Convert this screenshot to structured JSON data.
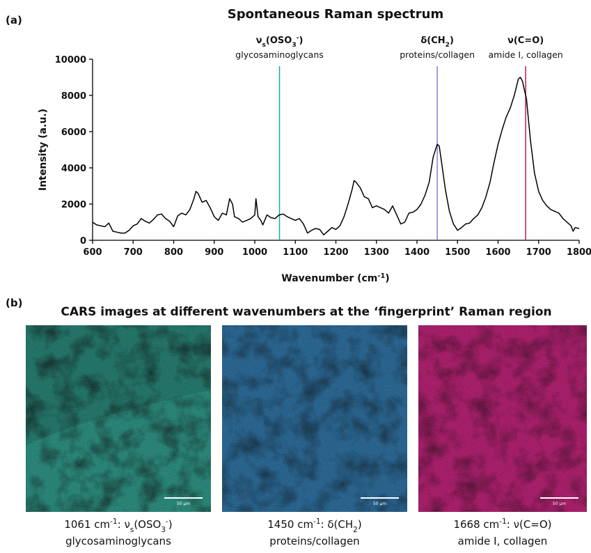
{
  "panel_a_label": "(a)",
  "panel_b_label": "(b)",
  "chart_data": {
    "type": "line",
    "title": "Spontaneous Raman spectrum",
    "x_label": [
      "Wavenumber (cm",
      {
        "sup": "-1"
      },
      ")"
    ],
    "y_label": "Intensity (a.u.)",
    "color": "#000000",
    "x": [
      600,
      610,
      620,
      630,
      640,
      650,
      660,
      670,
      680,
      690,
      700,
      710,
      720,
      730,
      740,
      750,
      760,
      770,
      780,
      790,
      800,
      810,
      820,
      830,
      840,
      850,
      855,
      860,
      870,
      880,
      890,
      900,
      910,
      920,
      930,
      938,
      945,
      950,
      960,
      970,
      980,
      990,
      1000,
      1003,
      1008,
      1015,
      1020,
      1030,
      1040,
      1050,
      1060,
      1070,
      1080,
      1090,
      1100,
      1110,
      1120,
      1130,
      1140,
      1150,
      1160,
      1170,
      1180,
      1190,
      1200,
      1210,
      1220,
      1230,
      1240,
      1245,
      1250,
      1260,
      1270,
      1280,
      1290,
      1300,
      1310,
      1320,
      1330,
      1340,
      1350,
      1360,
      1370,
      1380,
      1390,
      1400,
      1410,
      1420,
      1430,
      1440,
      1450,
      1455,
      1460,
      1470,
      1480,
      1490,
      1500,
      1510,
      1520,
      1530,
      1540,
      1550,
      1560,
      1570,
      1580,
      1590,
      1600,
      1610,
      1620,
      1630,
      1640,
      1650,
      1655,
      1660,
      1670,
      1680,
      1690,
      1700,
      1710,
      1720,
      1730,
      1740,
      1750,
      1760,
      1770,
      1780,
      1785,
      1790,
      1800
    ],
    "values": [
      1000,
      850,
      800,
      750,
      950,
      500,
      450,
      400,
      400,
      550,
      800,
      900,
      1200,
      1050,
      950,
      1150,
      1400,
      1450,
      1200,
      1050,
      750,
      1350,
      1500,
      1400,
      1700,
      2300,
      2700,
      2600,
      2100,
      2200,
      1800,
      1300,
      1100,
      1500,
      1400,
      2300,
      2000,
      1300,
      1200,
      1000,
      1100,
      1200,
      1400,
      2300,
      1300,
      1100,
      850,
      1400,
      1250,
      1200,
      1400,
      1450,
      1300,
      1200,
      1100,
      1200,
      900,
      400,
      550,
      650,
      600,
      300,
      500,
      700,
      600,
      800,
      1300,
      2000,
      2800,
      3300,
      3200,
      2900,
      2400,
      2300,
      1800,
      1900,
      1800,
      1700,
      1500,
      1900,
      1400,
      900,
      1000,
      1500,
      1550,
      1700,
      2000,
      2500,
      3200,
      4600,
      5300,
      5200,
      4400,
      2800,
      1600,
      900,
      550,
      700,
      900,
      950,
      1200,
      1400,
      1800,
      2400,
      3200,
      4300,
      5300,
      6100,
      6800,
      7300,
      8000,
      8900,
      9000,
      8800,
      7800,
      5500,
      3700,
      2700,
      2200,
      1900,
      1700,
      1600,
      1500,
      1200,
      1000,
      800,
      500,
      700,
      650
    ],
    "xlim": [
      600,
      1800
    ],
    "xticks": [
      600,
      700,
      800,
      900,
      1000,
      1100,
      1200,
      1300,
      1400,
      1500,
      1600,
      1700,
      1800
    ],
    "ylim": [
      0,
      10000
    ],
    "yticks": [
      0,
      2000,
      4000,
      6000,
      8000,
      10000
    ],
    "annotations": [
      {
        "x": 1061,
        "color": "#1aa7a7",
        "label": [
          "ν",
          {
            "sub": "s"
          },
          "(OSO",
          {
            "sub": "3"
          },
          {
            "sup": "-"
          },
          ")"
        ],
        "sublabel": "glycosaminoglycans"
      },
      {
        "x": 1450,
        "color": "#7f7fd6",
        "label": [
          "δ(CH",
          {
            "sub": "2"
          },
          ")"
        ],
        "sublabel": "proteins/collagen"
      },
      {
        "x": 1668,
        "color": "#c2185b",
        "label": [
          "ν(C=O)"
        ],
        "sublabel": "amide I, collagen"
      }
    ]
  },
  "images_title": "CARS images at different wavenumbers at the ‘fingerprint’ Raman region",
  "images": [
    {
      "scale_bar": "50 µm",
      "caption": [
        "1061 cm",
        {
          "sup": "-1"
        },
        ": ν",
        {
          "sub": "s"
        },
        "(OSO",
        {
          "sub": "3"
        },
        {
          "sup": "-"
        },
        ")"
      ],
      "caption2": "glycosaminoglycans"
    },
    {
      "scale_bar": "50 µm",
      "caption": [
        "1450 cm",
        {
          "sup": "-1"
        },
        ": δ(CH",
        {
          "sub": "2"
        },
        ")"
      ],
      "caption2": "proteins/collagen"
    },
    {
      "scale_bar": "50 µm",
      "caption": [
        "1668 cm",
        {
          "sup": "-1"
        },
        ": ν(C=O)"
      ],
      "caption2": "amide I, collagen"
    }
  ]
}
